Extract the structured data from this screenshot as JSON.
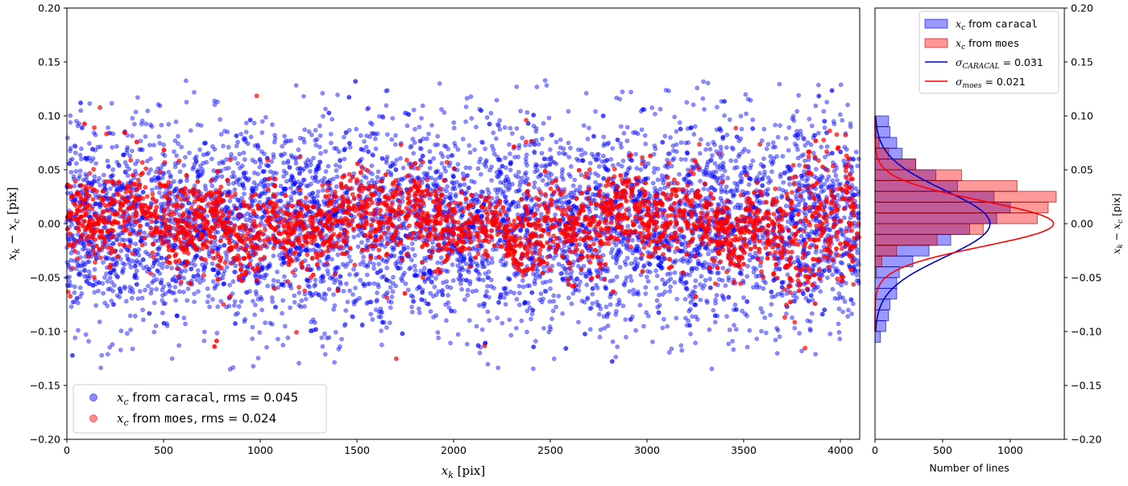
{
  "chart_data": [
    {
      "type": "scatter",
      "xlabel_sym": "x",
      "xlabel_sub": "k",
      "xlabel_unit": " [pix]",
      "ylabel_sym1": "x",
      "ylabel_sub1": "k",
      "ylabel_op": " − ",
      "ylabel_sym2": "x",
      "ylabel_sub2": "c",
      "ylabel_unit": " [pix]",
      "xlim": [
        0,
        4100
      ],
      "ylim": [
        -0.2,
        0.2
      ],
      "x_ticks": [
        "0",
        "500",
        "1000",
        "1500",
        "2000",
        "2500",
        "3000",
        "3500",
        "4000"
      ],
      "y_ticks": [
        "−0.20",
        "−0.15",
        "−0.10",
        "−0.05",
        "0.00",
        "0.05",
        "0.10",
        "0.15",
        "0.20"
      ],
      "grid": false,
      "legend_position": "bottom-left",
      "series": [
        {
          "name_sym": "x",
          "name_sub": "c",
          "name_from": " from ",
          "name_code": "caracal",
          "name_rms": ", rms = 0.045",
          "color": "#0000ff",
          "n_points": 6000,
          "x_range": [
            0,
            4096
          ],
          "y_rms": 0.045,
          "y_clip": 0.135
        },
        {
          "name_sym": "x",
          "name_sub": "c",
          "name_from": " from ",
          "name_code": "moes",
          "name_rms": ", rms = 0.024",
          "color": "#ff0000",
          "n_points": 6000,
          "x_range": [
            0,
            4096
          ],
          "y_rms": 0.024,
          "y_clip": 0.135
        }
      ]
    },
    {
      "type": "bar",
      "orientation": "horizontal",
      "xlabel": "Number of lines",
      "ylabel_sym1": "x",
      "ylabel_sub1": "k",
      "ylabel_op": " − ",
      "ylabel_sym2": "x",
      "ylabel_sub2": "c",
      "ylabel_unit": " [pix]",
      "xlim": [
        0,
        1400
      ],
      "ylim": [
        -0.2,
        0.2
      ],
      "x_ticks": [
        "0",
        "500",
        "1000"
      ],
      "y_ticks": [
        "−0.20",
        "−0.15",
        "−0.10",
        "−0.05",
        "0.00",
        "0.05",
        "0.10",
        "0.15",
        "0.20"
      ],
      "legend_position": "top-right",
      "bin_edges": [
        -0.11,
        -0.1,
        -0.09,
        -0.08,
        -0.07,
        -0.06,
        -0.05,
        -0.04,
        -0.03,
        -0.02,
        -0.01,
        0.0,
        0.01,
        0.02,
        0.03,
        0.04,
        0.05,
        0.06,
        0.07,
        0.08,
        0.09,
        0.1
      ],
      "hist_series": [
        {
          "name_sym": "x",
          "name_sub": "c",
          "name_from": " from ",
          "name_code": "caracal",
          "color": "#0000ff",
          "counts": [
            40,
            80,
            100,
            110,
            160,
            160,
            180,
            280,
            400,
            560,
            700,
            900,
            1000,
            880,
            610,
            450,
            300,
            200,
            160,
            110,
            100,
            70
          ]
        },
        {
          "name_sym": "x",
          "name_sub": "c",
          "name_from": " from ",
          "name_code": "moes",
          "color": "#ff0000",
          "counts": [
            0,
            0,
            0,
            0,
            0,
            0,
            10,
            50,
            160,
            460,
            800,
            1200,
            1280,
            1340,
            1050,
            640,
            300,
            100,
            30,
            10,
            0,
            0
          ]
        }
      ],
      "gauss_series": [
        {
          "sym": "σ",
          "sub": "CARACAL",
          "value": " = 0.031",
          "sigma": 0.031,
          "peak": 850,
          "color": "#0000cc"
        },
        {
          "sym": "σ",
          "sub": "moes",
          "value": " = 0.021",
          "sigma": 0.021,
          "peak": 1320,
          "color": "#ff0000"
        }
      ]
    }
  ]
}
